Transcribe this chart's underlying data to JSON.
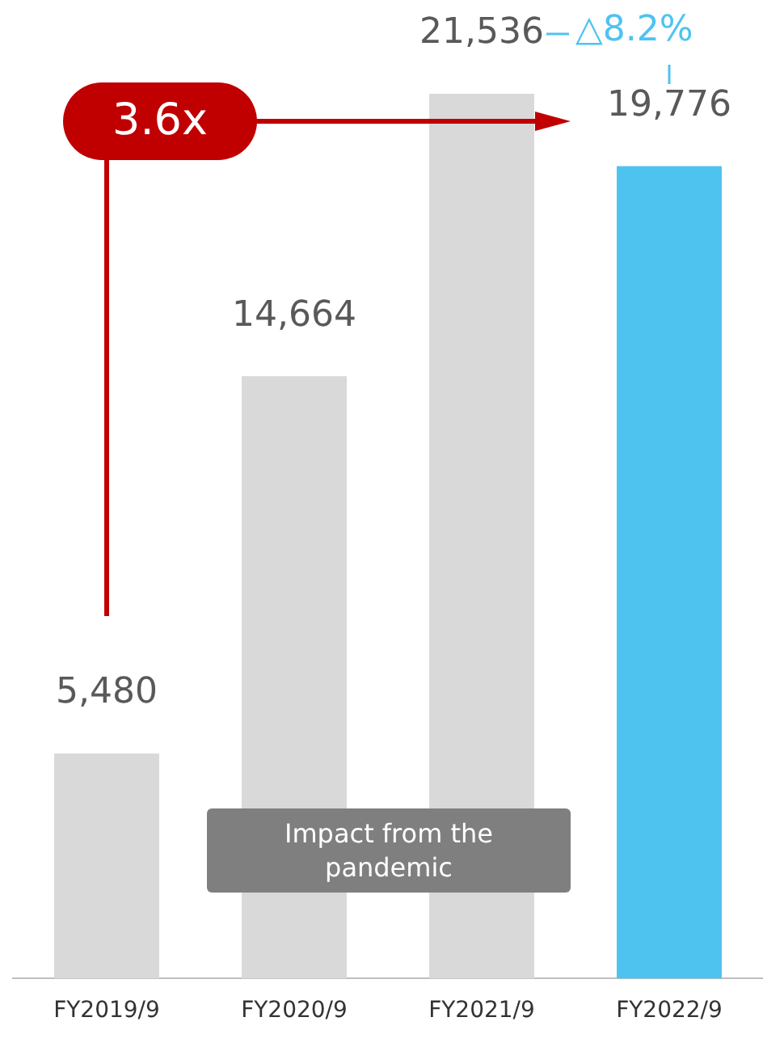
{
  "chart_data": {
    "type": "bar",
    "categories": [
      "FY2019/9",
      "FY2020/9",
      "FY2021/9",
      "FY2022/9"
    ],
    "values": [
      5480,
      14664,
      21536,
      19776
    ],
    "colors": [
      "#d9d9d9",
      "#d9d9d9",
      "#d9d9d9",
      "#4fc3f0"
    ],
    "value_labels": [
      "5,480",
      "14,664",
      "21,536",
      "19,776"
    ],
    "grid": false,
    "legend": false,
    "tick_labels": "x",
    "annotations": [
      "3.6x",
      "△8.2%",
      "Impact from the pandemic"
    ]
  }
}
